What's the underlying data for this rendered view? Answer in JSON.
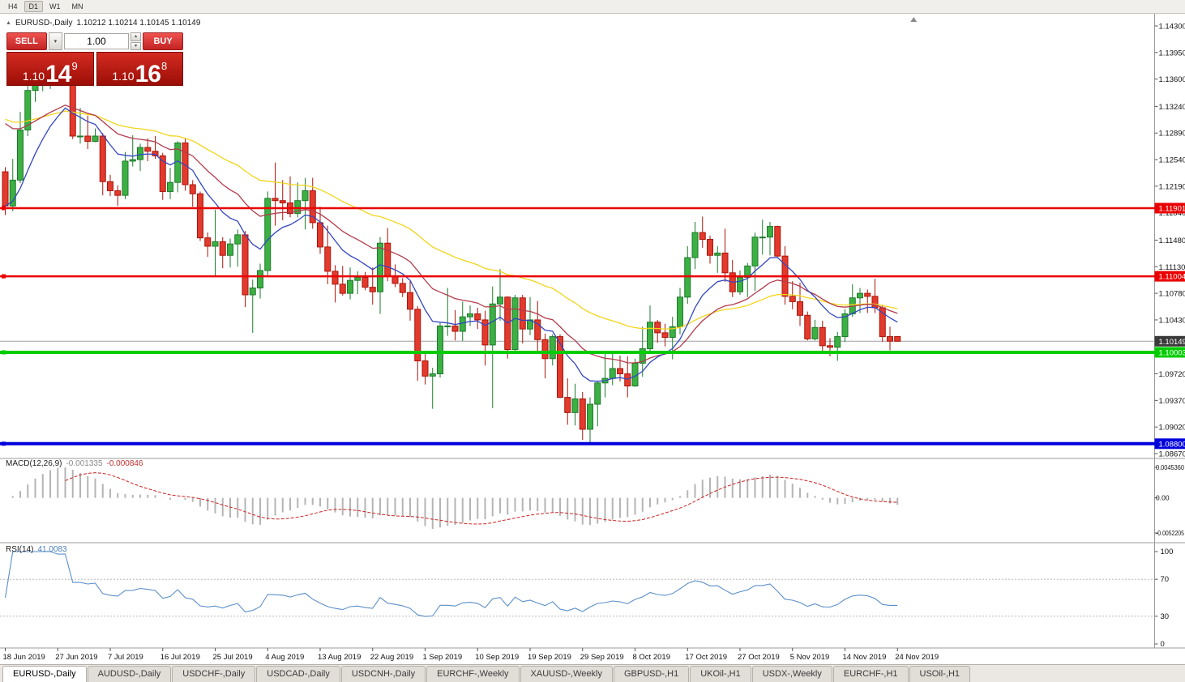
{
  "toolbar": {
    "timeframes": [
      "H4",
      "D1",
      "W1",
      "MN"
    ],
    "active": "D1"
  },
  "icons": {
    "collapse": "▲",
    "chevron_down": "▾",
    "spin_up": "▴",
    "spin_down": "▾"
  },
  "chart": {
    "symbol": "EURUSD-,Daily",
    "ohlc": "1.10212 1.10214 1.10145 1.10149"
  },
  "trade_panel": {
    "sell_label": "SELL",
    "buy_label": "BUY",
    "volume": "1.00",
    "sell_price": {
      "prefix": "1.10",
      "pips": "14",
      "pipette": "9"
    },
    "buy_price": {
      "prefix": "1.10",
      "pips": "16",
      "pipette": "8"
    }
  },
  "price_scale": {
    "labels": [
      "1.14300",
      "1.13950",
      "1.13600",
      "1.13240",
      "1.12890",
      "1.12540",
      "1.12190",
      "1.11840",
      "1.11480",
      "1.11130",
      "1.10780",
      "1.10430",
      "1.09720",
      "1.09370",
      "1.09020",
      "1.08670"
    ]
  },
  "levels": [
    {
      "label": "1.11901",
      "value": 1.11901,
      "color": "#ea0000",
      "width": 2.5,
      "kind": "resistance",
      "handle": true
    },
    {
      "label": "1.11004",
      "value": 1.11004,
      "color": "#ea0000",
      "width": 2.5,
      "kind": "resistance",
      "handle": true
    },
    {
      "label": "1.10149",
      "value": 1.10149,
      "color": "#a0a0a0",
      "tag_color": "#3a3a3a",
      "width": 1,
      "kind": "bid",
      "handle": false
    },
    {
      "label": "1.10003",
      "value": 1.10003,
      "color": "#00cc00",
      "width": 4,
      "kind": "support",
      "handle": true
    },
    {
      "label": "1.08800",
      "value": 1.088,
      "color": "#0000dd",
      "width": 4,
      "kind": "support",
      "handle": true
    }
  ],
  "macd": {
    "name": "MACD(12,26,9)",
    "value_main": "-0.001335",
    "value_signal": "-0.000846",
    "scale_labels": [
      "0.0045360",
      "0.00",
      "-0.0052205"
    ],
    "range": [
      -0.0052205,
      0.004536
    ],
    "histogram_color": "#b4b4b4",
    "signal_color": "#cc2222"
  },
  "rsi": {
    "name": "RSI(14)",
    "value": "41.0083",
    "scale_labels": [
      "100",
      "70",
      "30",
      "0"
    ],
    "levels": [
      70,
      30
    ],
    "line_color": "#5b8fc9"
  },
  "time_axis": {
    "candles_per_label": 7,
    "labels": [
      "18 Jun 2019",
      "27 Jun 2019",
      "7 Jul 2019",
      "16 Jul 2019",
      "25 Jul 2019",
      "4 Aug 2019",
      "13 Aug 2019",
      "22 Aug 2019",
      "1 Sep 2019",
      "10 Sep 2019",
      "19 Sep 2019",
      "29 Sep 2019",
      "8 Oct 2019",
      "17 Oct 2019",
      "27 Oct 2019",
      "5 Nov 2019",
      "14 Nov 2019",
      "24 Nov 2019"
    ]
  },
  "tabs": [
    {
      "label": "EURUSD-,Daily",
      "active": true
    },
    {
      "label": "AUDUSD-,Daily",
      "active": false
    },
    {
      "label": "USDCHF-,Daily",
      "active": false
    },
    {
      "label": "USDCAD-,Daily",
      "active": false
    },
    {
      "label": "USDCNH-,Daily",
      "active": false
    },
    {
      "label": "EURCHF-,Weekly",
      "active": false
    },
    {
      "label": "XAUUSD-,Weekly",
      "active": false
    },
    {
      "label": "GBPUSD-,H1",
      "active": false
    },
    {
      "label": "UKOil-,H1",
      "active": false
    },
    {
      "label": "USDX-,Weekly",
      "active": false
    },
    {
      "label": "EURCHF-,H1",
      "active": false
    },
    {
      "label": "USOil-,H1",
      "active": false
    }
  ],
  "chart_data": {
    "type": "candlestick",
    "symbol": "EURUSD-",
    "timeframe": "Daily",
    "price_range": [
      1.0867,
      1.143
    ],
    "up_color": "#3cb043",
    "up_border": "#1d7a2c",
    "down_color": "#e33a2e",
    "down_border": "#aa1409",
    "moving_averages": [
      {
        "period": 44,
        "color": "#f2d51a"
      },
      {
        "period": 21,
        "color": "#b23b4b"
      },
      {
        "period": 10,
        "color": "#3346c2"
      }
    ],
    "candles": [
      [
        1.1238,
        1.1244,
        1.1181,
        1.1193
      ],
      [
        1.1193,
        1.1255,
        1.1186,
        1.1227
      ],
      [
        1.1227,
        1.1317,
        1.1223,
        1.1293
      ],
      [
        1.1293,
        1.1355,
        1.1285,
        1.1345
      ],
      [
        1.1345,
        1.1374,
        1.133,
        1.1362
      ],
      [
        1.1362,
        1.139,
        1.1344,
        1.1367
      ],
      [
        1.1367,
        1.1382,
        1.1347,
        1.1373
      ],
      [
        1.1373,
        1.1388,
        1.1357,
        1.1368
      ],
      [
        1.1368,
        1.1391,
        1.1352,
        1.1373
      ],
      [
        1.1373,
        1.1376,
        1.1281,
        1.1285
      ],
      [
        1.1285,
        1.1322,
        1.1275,
        1.1285
      ],
      [
        1.1285,
        1.1312,
        1.1268,
        1.1278
      ],
      [
        1.1278,
        1.1295,
        1.1277,
        1.1285
      ],
      [
        1.1285,
        1.1289,
        1.1207,
        1.1225
      ],
      [
        1.1225,
        1.1234,
        1.1206,
        1.1213
      ],
      [
        1.1213,
        1.122,
        1.1193,
        1.1207
      ],
      [
        1.1207,
        1.1264,
        1.1202,
        1.1252
      ],
      [
        1.1252,
        1.1286,
        1.1245,
        1.1254
      ],
      [
        1.1254,
        1.1275,
        1.1239,
        1.127
      ],
      [
        1.127,
        1.1282,
        1.1252,
        1.1265
      ],
      [
        1.1265,
        1.1285,
        1.1255,
        1.1259
      ],
      [
        1.1259,
        1.1263,
        1.1201,
        1.1212
      ],
      [
        1.1212,
        1.1243,
        1.1202,
        1.1224
      ],
      [
        1.1224,
        1.1278,
        1.1211,
        1.1276
      ],
      [
        1.1276,
        1.1282,
        1.1213,
        1.1221
      ],
      [
        1.1221,
        1.1227,
        1.1192,
        1.1209
      ],
      [
        1.1209,
        1.1212,
        1.1147,
        1.1151
      ],
      [
        1.1151,
        1.1158,
        1.1126,
        1.114
      ],
      [
        1.114,
        1.1188,
        1.1101,
        1.1146
      ],
      [
        1.1146,
        1.1152,
        1.1111,
        1.1128
      ],
      [
        1.1128,
        1.115,
        1.1112,
        1.1143
      ],
      [
        1.1143,
        1.1162,
        1.1113,
        1.1155
      ],
      [
        1.1155,
        1.116,
        1.106,
        1.1076
      ],
      [
        1.1076,
        1.1096,
        1.1026,
        1.1085
      ],
      [
        1.1085,
        1.1117,
        1.1071,
        1.1108
      ],
      [
        1.1108,
        1.1212,
        1.1101,
        1.1203
      ],
      [
        1.1203,
        1.125,
        1.1167,
        1.12
      ],
      [
        1.12,
        1.1227,
        1.1174,
        1.1197
      ],
      [
        1.1197,
        1.1232,
        1.1178,
        1.1183
      ],
      [
        1.1183,
        1.1224,
        1.1178,
        1.12
      ],
      [
        1.12,
        1.123,
        1.1162,
        1.1213
      ],
      [
        1.1213,
        1.123,
        1.1163,
        1.1171
      ],
      [
        1.1171,
        1.1192,
        1.113,
        1.1139
      ],
      [
        1.1139,
        1.1167,
        1.109,
        1.1107
      ],
      [
        1.1107,
        1.1115,
        1.1066,
        1.109
      ],
      [
        1.109,
        1.1114,
        1.1075,
        1.1078
      ],
      [
        1.1078,
        1.1112,
        1.107,
        1.1095
      ],
      [
        1.1095,
        1.1107,
        1.1077,
        1.1099
      ],
      [
        1.1099,
        1.1106,
        1.1082,
        1.1086
      ],
      [
        1.1086,
        1.1112,
        1.1063,
        1.108
      ],
      [
        1.108,
        1.1152,
        1.1051,
        1.1144
      ],
      [
        1.1144,
        1.1164,
        1.1094,
        1.1101
      ],
      [
        1.1101,
        1.1116,
        1.1086,
        1.1091
      ],
      [
        1.1091,
        1.1098,
        1.1073,
        1.1079
      ],
      [
        1.1079,
        1.1094,
        1.1042,
        1.1057
      ],
      [
        1.1057,
        1.1061,
        1.0963,
        1.0989
      ],
      [
        1.0989,
        1.0998,
        1.0958,
        1.0969
      ],
      [
        1.0969,
        1.098,
        1.0926,
        1.0972
      ],
      [
        1.0972,
        1.1039,
        1.0967,
        1.1035
      ],
      [
        1.1035,
        1.1085,
        1.1022,
        1.1035
      ],
      [
        1.1035,
        1.1056,
        1.1016,
        1.1028
      ],
      [
        1.1028,
        1.1067,
        1.1015,
        1.1047
      ],
      [
        1.1047,
        1.1062,
        1.1035,
        1.1051
      ],
      [
        1.1051,
        1.1059,
        1.1031,
        1.1043
      ],
      [
        1.1043,
        1.1055,
        1.0983,
        1.101
      ],
      [
        1.101,
        1.1087,
        1.0927,
        1.1064
      ],
      [
        1.1064,
        1.111,
        1.1042,
        1.1073
      ],
      [
        1.1073,
        1.1074,
        1.0992,
        1.1004
      ],
      [
        1.1004,
        1.1076,
        1.0998,
        1.1072
      ],
      [
        1.1072,
        1.1076,
        1.1012,
        1.1031
      ],
      [
        1.1031,
        1.1073,
        1.1023,
        1.1043
      ],
      [
        1.1043,
        1.1068,
        1.1,
        1.1017
      ],
      [
        1.1017,
        1.1025,
        1.0966,
        1.0992
      ],
      [
        1.0992,
        1.1024,
        1.0983,
        1.1021
      ],
      [
        1.1021,
        1.1024,
        1.094,
        1.0941
      ],
      [
        1.0941,
        1.0966,
        1.0905,
        1.0921
      ],
      [
        1.0921,
        1.0959,
        1.0904,
        1.0939
      ],
      [
        1.0939,
        1.0948,
        1.0885,
        1.0899
      ],
      [
        1.0899,
        1.0941,
        1.0879,
        1.0932
      ],
      [
        1.0932,
        1.0963,
        1.0903,
        1.096
      ],
      [
        1.096,
        1.0999,
        1.0941,
        1.0966
      ],
      [
        1.0966,
        1.0999,
        1.0957,
        1.0979
      ],
      [
        1.0979,
        1.0996,
        1.0962,
        1.0972
      ],
      [
        1.0972,
        1.0995,
        1.0941,
        1.0956
      ],
      [
        1.0956,
        1.0992,
        1.0955,
        1.0986
      ],
      [
        1.0986,
        1.1034,
        1.0968,
        1.1005
      ],
      [
        1.1005,
        1.1062,
        1.1002,
        1.104
      ],
      [
        1.104,
        1.1043,
        1.1013,
        1.1026
      ],
      [
        1.1026,
        1.1038,
        1.1008,
        1.102
      ],
      [
        1.102,
        1.1047,
        1.0991,
        1.1034
      ],
      [
        1.1034,
        1.1085,
        1.1024,
        1.1073
      ],
      [
        1.1073,
        1.114,
        1.1064,
        1.1125
      ],
      [
        1.1125,
        1.1172,
        1.111,
        1.1158
      ],
      [
        1.1158,
        1.1179,
        1.1138,
        1.1149
      ],
      [
        1.1149,
        1.1154,
        1.1117,
        1.1128
      ],
      [
        1.1128,
        1.114,
        1.1105,
        1.1131
      ],
      [
        1.1131,
        1.1163,
        1.1093,
        1.1105
      ],
      [
        1.1105,
        1.1122,
        1.1073,
        1.108
      ],
      [
        1.108,
        1.1108,
        1.1076,
        1.1099
      ],
      [
        1.1099,
        1.1118,
        1.1073,
        1.1114
      ],
      [
        1.1114,
        1.1158,
        1.1081,
        1.1152
      ],
      [
        1.1152,
        1.1175,
        1.1129,
        1.1152
      ],
      [
        1.1152,
        1.1172,
        1.1128,
        1.1166
      ],
      [
        1.1166,
        1.1167,
        1.1126,
        1.1127
      ],
      [
        1.1127,
        1.114,
        1.1063,
        1.1074
      ],
      [
        1.1074,
        1.1094,
        1.1057,
        1.1067
      ],
      [
        1.1067,
        1.1092,
        1.1035,
        1.1049
      ],
      [
        1.1049,
        1.1054,
        1.1016,
        1.1018
      ],
      [
        1.1018,
        1.1043,
        1.1016,
        1.1033
      ],
      [
        1.1033,
        1.1042,
        1.1002,
        1.1009
      ],
      [
        1.1009,
        1.1019,
        1.0995,
        1.1007
      ],
      [
        1.1007,
        1.1027,
        1.0989,
        1.1021
      ],
      [
        1.1021,
        1.1057,
        1.1014,
        1.1051
      ],
      [
        1.1051,
        1.109,
        1.1047,
        1.1072
      ],
      [
        1.1072,
        1.1085,
        1.1052,
        1.1078
      ],
      [
        1.1078,
        1.1083,
        1.1052,
        1.1074
      ],
      [
        1.1074,
        1.1097,
        1.1052,
        1.1059
      ],
      [
        1.1059,
        1.1063,
        1.1014,
        1.1021
      ],
      [
        1.1021,
        1.1034,
        1.1003,
        1.1015
      ],
      [
        1.10212,
        1.10214,
        1.10145,
        1.10149
      ]
    ]
  }
}
